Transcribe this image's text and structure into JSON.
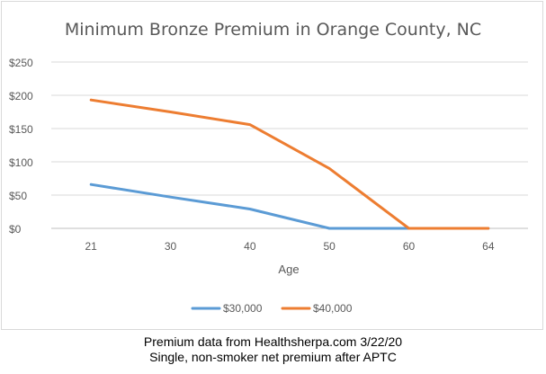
{
  "chart_data": {
    "type": "line",
    "title": "Minimum Bronze Premium in Orange County, NC",
    "xlabel": "Age",
    "ylabel": "",
    "categories": [
      "21",
      "30",
      "40",
      "50",
      "60",
      "64"
    ],
    "ylim": [
      0,
      250
    ],
    "yticks": [
      0,
      50,
      100,
      150,
      200,
      250
    ],
    "ytick_labels": [
      "$0",
      "$50",
      "$100",
      "$150",
      "$200",
      "$250"
    ],
    "grid": true,
    "legend_position": "bottom",
    "series": [
      {
        "name": "$30,000",
        "color": "#5b9bd5",
        "values": [
          66,
          47,
          29,
          0,
          0,
          0
        ]
      },
      {
        "name": "$40,000",
        "color": "#ed7d31",
        "values": [
          193,
          175,
          156,
          90,
          0,
          0
        ]
      }
    ]
  },
  "footer": {
    "line1": "Premium data from Healthsherpa.com 3/22/20",
    "line2": "Single, non-smoker net premium after APTC"
  }
}
